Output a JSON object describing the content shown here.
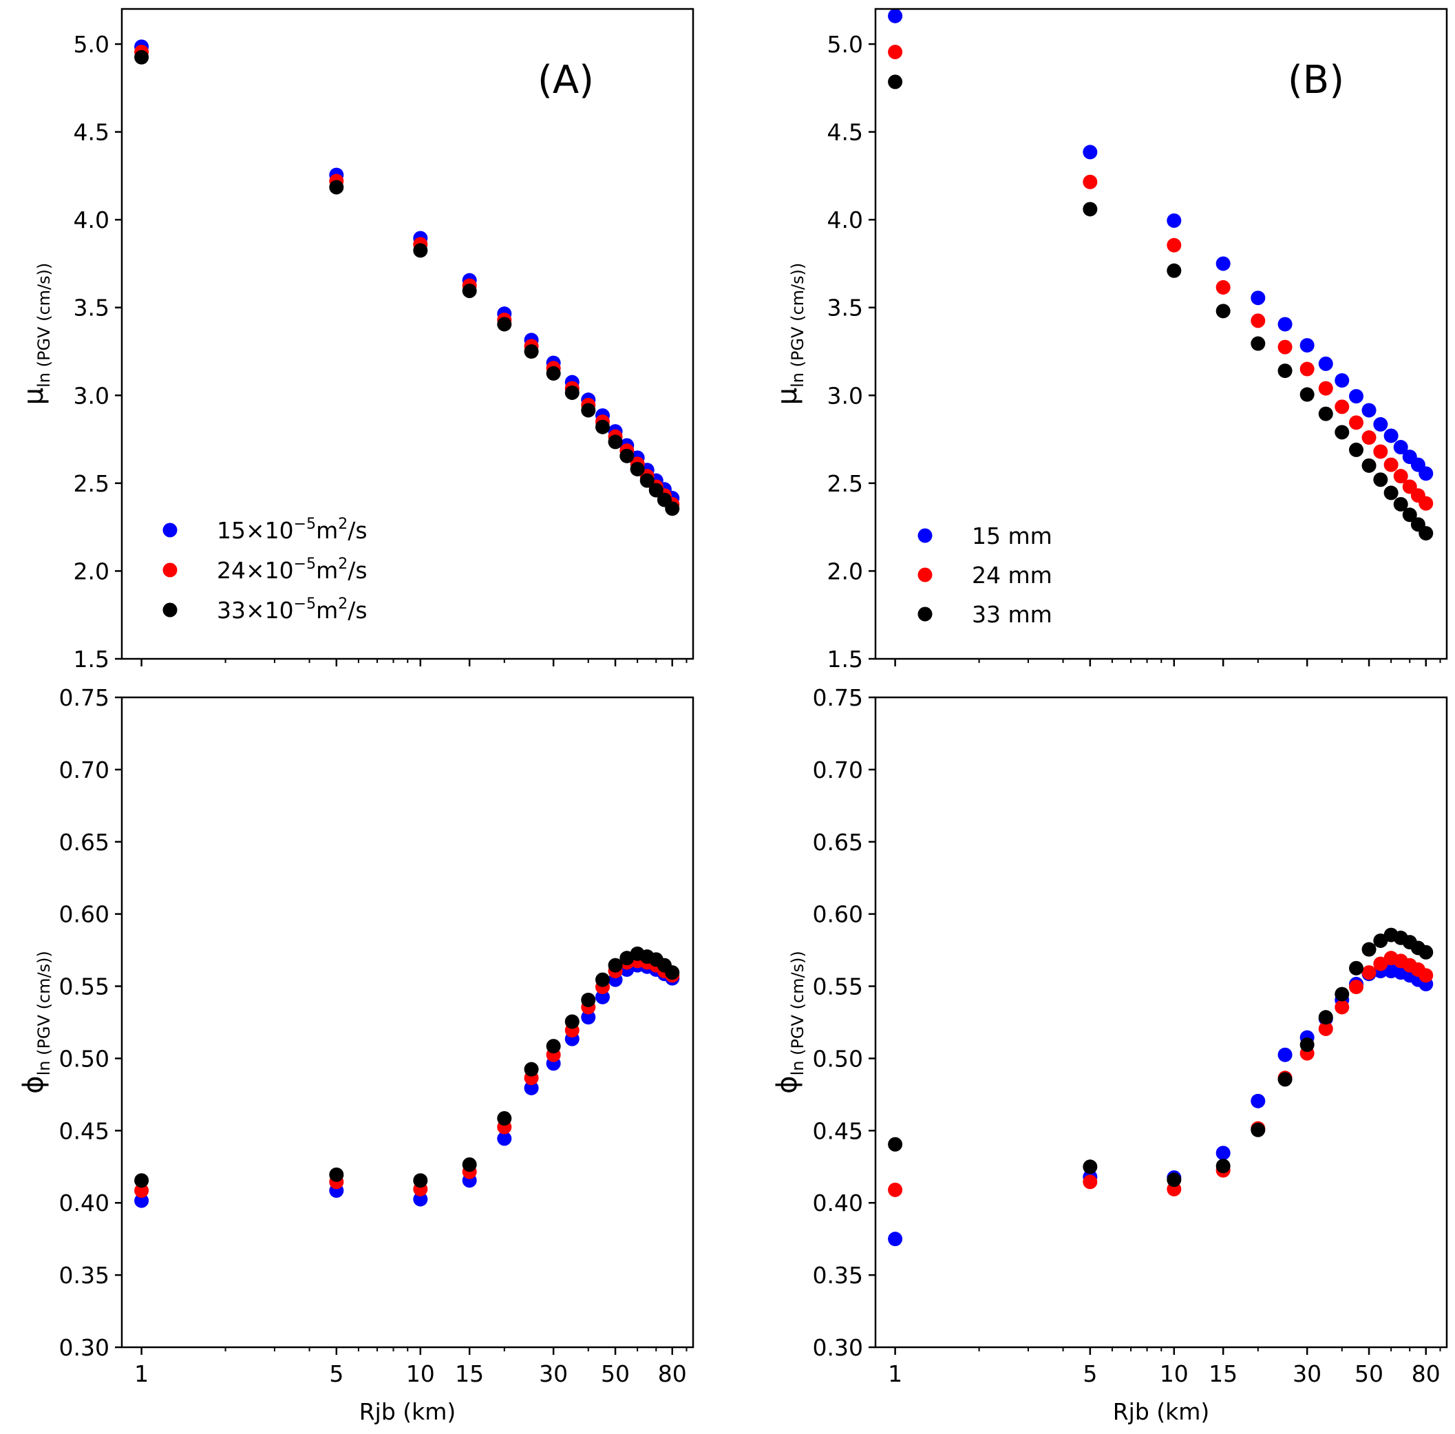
{
  "chart_data": [
    {
      "type": "scatter",
      "panel": "A-top",
      "title": "",
      "panel_label": "(A)",
      "xlabel": "",
      "ylabel": "μ",
      "ylabel_sub": "ln (PGV (cm/s))",
      "xscale": "log",
      "xlim": [
        0.85,
        95
      ],
      "ylim": [
        1.5,
        5.2
      ],
      "yticks": [
        "1.5",
        "2.0",
        "2.5",
        "3.0",
        "3.5",
        "4.0",
        "4.5",
        "5.0"
      ],
      "xticks": [],
      "x": [
        1,
        5,
        10,
        15,
        20,
        25,
        30,
        35,
        40,
        45,
        50,
        55,
        60,
        65,
        70,
        75,
        80
      ],
      "series": [
        {
          "name": "15×10⁻⁵m²/s",
          "legend_base": "15×10",
          "legend_exp": "−5",
          "legend_unit": "m",
          "legend_unit_exp": "2",
          "legend_tail": "/s",
          "color": "#0000ff",
          "values": [
            4.985,
            4.255,
            3.895,
            3.655,
            3.465,
            3.315,
            3.185,
            3.075,
            2.975,
            2.885,
            2.795,
            2.715,
            2.645,
            2.575,
            2.515,
            2.465,
            2.415
          ]
        },
        {
          "name": "24×10⁻⁵m²/s",
          "legend_base": "24×10",
          "legend_exp": "−5",
          "legend_unit": "m",
          "legend_unit_exp": "2",
          "legend_tail": "/s",
          "color": "#ff0000",
          "values": [
            4.955,
            4.22,
            3.86,
            3.625,
            3.43,
            3.28,
            3.155,
            3.04,
            2.945,
            2.85,
            2.765,
            2.685,
            2.61,
            2.54,
            2.48,
            2.43,
            2.38
          ]
        },
        {
          "name": "33×10⁻⁵m²/s",
          "legend_base": "33×10",
          "legend_exp": "−5",
          "legend_unit": "m",
          "legend_unit_exp": "2",
          "legend_tail": "/s",
          "color": "#000000",
          "values": [
            4.925,
            4.185,
            3.825,
            3.595,
            3.405,
            3.25,
            3.125,
            3.015,
            2.915,
            2.82,
            2.735,
            2.655,
            2.58,
            2.515,
            2.46,
            2.405,
            2.355
          ]
        }
      ],
      "legend_position": "bottom-left"
    },
    {
      "type": "scatter",
      "panel": "B-top",
      "title": "",
      "panel_label": "(B)",
      "xlabel": "",
      "ylabel": "μ",
      "ylabel_sub": "ln (PGV (cm/s))",
      "xscale": "log",
      "xlim": [
        0.85,
        95
      ],
      "ylim": [
        1.5,
        5.2
      ],
      "yticks": [
        "1.5",
        "2.0",
        "2.5",
        "3.0",
        "3.5",
        "4.0",
        "4.5",
        "5.0"
      ],
      "xticks": [],
      "x": [
        1,
        5,
        10,
        15,
        20,
        25,
        30,
        35,
        40,
        45,
        50,
        55,
        60,
        65,
        70,
        75,
        80
      ],
      "series": [
        {
          "name": "15 mm",
          "color": "#0000ff",
          "values": [
            5.16,
            4.385,
            3.995,
            3.75,
            3.555,
            3.405,
            3.285,
            3.18,
            3.085,
            2.995,
            2.915,
            2.835,
            2.77,
            2.705,
            2.65,
            2.605,
            2.555
          ]
        },
        {
          "name": "24 mm",
          "color": "#ff0000",
          "values": [
            4.955,
            4.215,
            3.855,
            3.615,
            3.425,
            3.275,
            3.15,
            3.04,
            2.935,
            2.845,
            2.76,
            2.68,
            2.605,
            2.54,
            2.48,
            2.43,
            2.385
          ]
        },
        {
          "name": "33 mm",
          "color": "#000000",
          "values": [
            4.785,
            4.06,
            3.71,
            3.48,
            3.295,
            3.14,
            3.005,
            2.895,
            2.79,
            2.69,
            2.6,
            2.52,
            2.445,
            2.38,
            2.32,
            2.265,
            2.215
          ]
        }
      ],
      "legend_position": "bottom-left"
    },
    {
      "type": "scatter",
      "panel": "A-bottom",
      "title": "",
      "xlabel": "Rjb (km)",
      "ylabel": "ϕ",
      "ylabel_sub": "ln (PGV (cm/s))",
      "xscale": "log",
      "xlim": [
        0.85,
        95
      ],
      "ylim": [
        0.3,
        0.75
      ],
      "yticks": [
        "0.30",
        "0.35",
        "0.40",
        "0.45",
        "0.50",
        "0.55",
        "0.60",
        "0.65",
        "0.70",
        "0.75"
      ],
      "xticks": [
        "1",
        "5",
        "10",
        "15",
        "30",
        "50",
        "80"
      ],
      "x": [
        1,
        5,
        10,
        15,
        20,
        25,
        30,
        35,
        40,
        45,
        50,
        55,
        60,
        65,
        70,
        75,
        80
      ],
      "series": [
        {
          "name": "15×10⁻⁵m²/s",
          "color": "#0000ff",
          "values": [
            0.4015,
            0.4085,
            0.4025,
            0.4155,
            0.4445,
            0.4795,
            0.4965,
            0.5135,
            0.5285,
            0.5425,
            0.5545,
            0.5615,
            0.5645,
            0.5635,
            0.5615,
            0.5585,
            0.5555
          ]
        },
        {
          "name": "24×10⁻⁵m²/s",
          "color": "#ff0000",
          "values": [
            0.4085,
            0.4145,
            0.4095,
            0.4215,
            0.4525,
            0.4865,
            0.5025,
            0.5195,
            0.5355,
            0.5495,
            0.5605,
            0.5665,
            0.5675,
            0.5665,
            0.5645,
            0.5605,
            0.5575
          ]
        },
        {
          "name": "33×10⁻⁵m²/s",
          "color": "#000000",
          "values": [
            0.4155,
            0.4195,
            0.4155,
            0.4265,
            0.4585,
            0.4925,
            0.5085,
            0.5255,
            0.5405,
            0.5545,
            0.5645,
            0.5695,
            0.5725,
            0.5705,
            0.5685,
            0.5645,
            0.5595
          ]
        }
      ]
    },
    {
      "type": "scatter",
      "panel": "B-bottom",
      "title": "",
      "xlabel": "Rjb (km)",
      "ylabel": "ϕ",
      "ylabel_sub": "ln (PGV (cm/s))",
      "xscale": "log",
      "xlim": [
        0.85,
        95
      ],
      "ylim": [
        0.3,
        0.75
      ],
      "yticks": [
        "0.30",
        "0.35",
        "0.40",
        "0.45",
        "0.50",
        "0.55",
        "0.60",
        "0.65",
        "0.70",
        "0.75"
      ],
      "xticks": [
        "1",
        "5",
        "10",
        "15",
        "30",
        "50",
        "80"
      ],
      "x": [
        1,
        5,
        10,
        15,
        20,
        25,
        30,
        35,
        40,
        45,
        50,
        55,
        60,
        65,
        70,
        75,
        80
      ],
      "series": [
        {
          "name": "15 mm",
          "color": "#0000ff",
          "values": [
            0.375,
            0.418,
            0.4175,
            0.4345,
            0.4705,
            0.5025,
            0.5145,
            0.5275,
            0.5405,
            0.5515,
            0.5585,
            0.5605,
            0.5605,
            0.5595,
            0.5575,
            0.5545,
            0.5515
          ]
        },
        {
          "name": "24 mm",
          "color": "#ff0000",
          "values": [
            0.409,
            0.4145,
            0.4095,
            0.4225,
            0.4515,
            0.4865,
            0.5035,
            0.5205,
            0.5355,
            0.5495,
            0.5595,
            0.5655,
            0.5695,
            0.5675,
            0.5645,
            0.5615,
            0.5575
          ]
        },
        {
          "name": "33 mm",
          "color": "#000000",
          "values": [
            0.4405,
            0.425,
            0.416,
            0.4255,
            0.4505,
            0.4855,
            0.5095,
            0.5285,
            0.5445,
            0.5625,
            0.5755,
            0.5815,
            0.5855,
            0.5835,
            0.5805,
            0.5765,
            0.5735
          ]
        }
      ]
    }
  ]
}
